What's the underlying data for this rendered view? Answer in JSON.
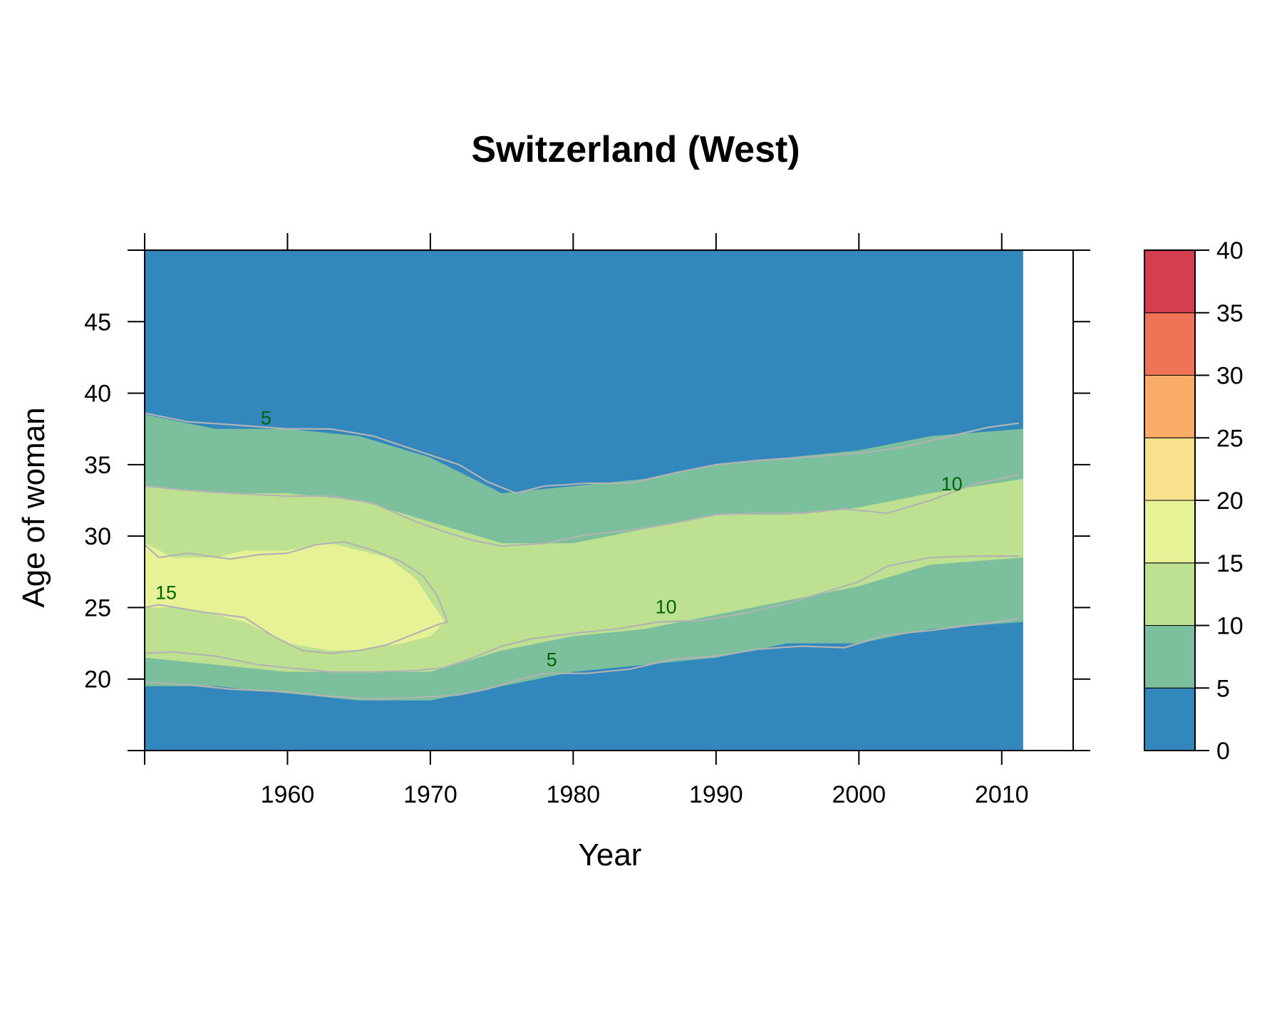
{
  "chart_data": {
    "type": "heatmap",
    "title": "Switzerland (West)",
    "xlabel": "Year",
    "ylabel": "Age of woman",
    "xlim": [
      1950,
      2015
    ],
    "ylim": [
      15,
      50
    ],
    "x_data_range": [
      1950,
      2011.5
    ],
    "x_ticks": [
      1950,
      1960,
      1970,
      1980,
      1990,
      2000,
      2010
    ],
    "x_tick_labels": [
      "1960",
      "1970",
      "1980",
      "1990",
      "2000",
      "2010"
    ],
    "y_ticks": [
      15,
      20,
      25,
      30,
      35,
      40,
      45,
      50
    ],
    "y_tick_labels": [
      "20",
      "25",
      "30",
      "35",
      "40",
      "45"
    ],
    "grid": false,
    "legend_position": "right",
    "colorbar": {
      "breaks": [
        0,
        5,
        10,
        15,
        20,
        25,
        30,
        35,
        40
      ],
      "labels": [
        "0",
        "5",
        "10",
        "15",
        "20",
        "25",
        "30",
        "35",
        "40"
      ],
      "colors": [
        "#3288bd",
        "#7bbf9d",
        "#bde190",
        "#e6f295",
        "#f8e18c",
        "#f8ac68",
        "#ef7356",
        "#d53e4f"
      ]
    },
    "bands": {
      "description": "age bounds of each rate band by year",
      "years": [
        1950,
        1955,
        1960,
        1965,
        1970,
        1975,
        1980,
        1985,
        1990,
        1995,
        2000,
        2005,
        2011
      ],
      "band_5_upper": [
        38.5,
        37.5,
        37.5,
        37.0,
        35.5,
        33.0,
        33.5,
        34.0,
        35.0,
        35.5,
        36.0,
        37.0,
        37.5
      ],
      "band_5_lower": [
        19.5,
        19.5,
        19.0,
        18.5,
        18.5,
        19.5,
        20.5,
        21.0,
        21.5,
        22.5,
        22.5,
        23.5,
        24.0
      ],
      "band_10_upper": [
        33.5,
        33.0,
        33.0,
        32.5,
        31.0,
        29.5,
        29.5,
        30.5,
        31.5,
        31.5,
        32.0,
        33.0,
        34.0
      ],
      "band_10_lower": [
        21.5,
        21.0,
        20.5,
        20.5,
        20.5,
        22.0,
        23.0,
        23.5,
        24.5,
        25.5,
        26.5,
        28.0,
        28.5
      ],
      "band_15_region": {
        "years": [
          1950,
          1952,
          1955,
          1957,
          1960,
          1963,
          1965,
          1967,
          1969,
          1970,
          1971,
          1970,
          1968,
          1965,
          1963,
          1960,
          1957,
          1955,
          1952,
          1950
        ],
        "ages": [
          29.5,
          28.5,
          28.5,
          29.0,
          29.0,
          29.5,
          29.0,
          28.5,
          27.0,
          25.5,
          24.0,
          23.0,
          22.5,
          22.0,
          22.0,
          22.5,
          24.0,
          24.5,
          25.0,
          25.0
        ]
      }
    },
    "contours": [
      {
        "label": "5",
        "years": [
          1950,
          1953,
          1956,
          1960,
          1963,
          1966,
          1969,
          1972,
          1974,
          1976,
          1978,
          1981,
          1984,
          1987,
          1990,
          1993,
          1996,
          2000,
          2003,
          2006,
          2009,
          2011.2
        ],
        "ages": [
          38.6,
          38.0,
          37.8,
          37.5,
          37.5,
          37.0,
          36.0,
          35.0,
          33.8,
          33.0,
          33.5,
          33.7,
          33.7,
          34.4,
          35.0,
          35.3,
          35.5,
          35.8,
          36.2,
          36.9,
          37.6,
          37.9
        ]
      },
      {
        "label": "10",
        "years": [
          1950,
          1953,
          1956,
          1960,
          1963,
          1966,
          1969,
          1971,
          1973,
          1975,
          1978,
          1981,
          1984,
          1987,
          1990,
          1993,
          1996,
          1999,
          2002,
          2005,
          2008,
          2011.2
        ],
        "ages": [
          33.5,
          33.2,
          33.0,
          32.8,
          32.8,
          32.3,
          31.0,
          30.3,
          29.7,
          29.3,
          29.5,
          30.1,
          30.4,
          30.9,
          31.5,
          31.6,
          31.6,
          31.9,
          31.6,
          32.5,
          33.6,
          34.3
        ]
      },
      {
        "label": "15",
        "years": [
          1950,
          1951,
          1953,
          1956,
          1958,
          1960,
          1962,
          1964,
          1966,
          1968,
          1969.5,
          1970.5,
          1971.2,
          1970.5,
          1969,
          1967,
          1965,
          1963,
          1961,
          1959,
          1957,
          1954,
          1951,
          1950
        ],
        "ages": [
          29.4,
          28.5,
          28.8,
          28.4,
          28.7,
          28.8,
          29.4,
          29.6,
          29.0,
          28.2,
          27.2,
          25.8,
          24.0,
          23.8,
          23.2,
          22.4,
          22.0,
          21.8,
          22.0,
          23.0,
          24.3,
          24.7,
          25.2,
          25.0
        ]
      },
      {
        "label": "10",
        "years": [
          1950,
          1952,
          1955,
          1958,
          1960,
          1963,
          1966,
          1969,
          1971,
          1973,
          1975,
          1977,
          1980,
          1983,
          1986,
          1989,
          1992,
          1995,
          1998,
          2000,
          2002,
          2005,
          2008,
          2011.2
        ],
        "ages": [
          21.8,
          21.9,
          21.6,
          21.0,
          20.8,
          20.5,
          20.5,
          20.6,
          20.8,
          21.5,
          22.3,
          22.8,
          23.2,
          23.5,
          24.0,
          24.1,
          24.6,
          25.3,
          26.2,
          26.8,
          27.9,
          28.5,
          28.6,
          28.6
        ]
      },
      {
        "label": "5",
        "years": [
          1950,
          1953,
          1956,
          1960,
          1963,
          1966,
          1969,
          1972,
          1974,
          1976,
          1978,
          1981,
          1984,
          1987,
          1990,
          1993,
          1996,
          1999,
          2002,
          2005,
          2008,
          2011.2
        ],
        "ages": [
          19.8,
          19.6,
          19.3,
          19.1,
          18.8,
          18.6,
          18.7,
          18.9,
          19.3,
          19.9,
          20.4,
          20.4,
          20.7,
          21.4,
          21.6,
          22.1,
          22.3,
          22.2,
          23.1,
          23.4,
          23.8,
          24.2
        ]
      }
    ],
    "contour_labels": [
      {
        "text": "5",
        "x": 1958.5,
        "y": 37.8
      },
      {
        "text": "10",
        "x": 2006.5,
        "y": 33.2
      },
      {
        "text": "15",
        "x": 1951.5,
        "y": 25.6
      },
      {
        "text": "10",
        "x": 1986.5,
        "y": 24.6
      },
      {
        "text": "5",
        "x": 1978.5,
        "y": 20.9
      }
    ]
  }
}
